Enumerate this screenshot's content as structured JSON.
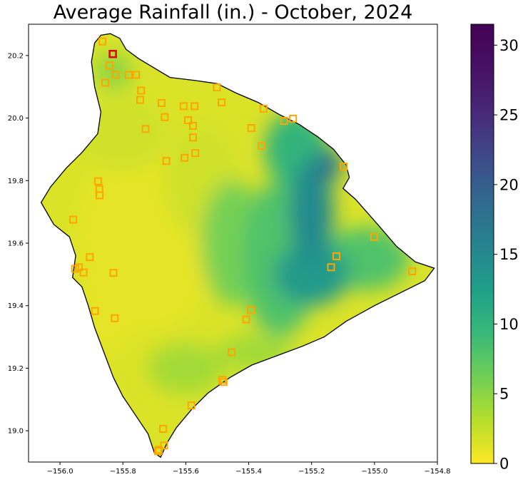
{
  "chart_data": {
    "type": "heatmap",
    "title": "Average Rainfall (in.) - October, 2024",
    "xlabel": "",
    "ylabel": "",
    "xlim": [
      -156.1,
      -154.8
    ],
    "ylim": [
      18.9,
      20.3
    ],
    "x_ticks": [
      -156.0,
      -155.8,
      -155.6,
      -155.4,
      -155.2,
      -155.0,
      -154.8
    ],
    "x_tick_labels": [
      "−156.0",
      "−155.8",
      "−155.6",
      "−155.4",
      "−155.2",
      "−155.0",
      "−154.8"
    ],
    "y_ticks": [
      19.0,
      19.2,
      19.4,
      19.6,
      19.8,
      20.0,
      20.2
    ],
    "y_tick_labels": [
      "19.0",
      "19.2",
      "19.4",
      "19.6",
      "19.8",
      "20.0",
      "20.2"
    ],
    "colorbar": {
      "colormap": "viridis_r",
      "min": 0,
      "max": 31.5,
      "ticks": [
        0,
        5,
        10,
        15,
        20,
        25,
        30
      ],
      "tick_labels": [
        "0",
        "5",
        "10",
        "15",
        "20",
        "25",
        "30"
      ]
    },
    "island_outline": [
      [
        -155.87,
        20.265
      ],
      [
        -155.84,
        20.27
      ],
      [
        -155.81,
        20.255
      ],
      [
        -155.79,
        20.22
      ],
      [
        -155.75,
        20.19
      ],
      [
        -155.7,
        20.16
      ],
      [
        -155.65,
        20.13
      ],
      [
        -155.57,
        20.12
      ],
      [
        -155.5,
        20.11
      ],
      [
        -155.44,
        20.08
      ],
      [
        -155.37,
        20.05
      ],
      [
        -155.3,
        20.01
      ],
      [
        -155.24,
        19.98
      ],
      [
        -155.18,
        19.94
      ],
      [
        -155.13,
        19.9
      ],
      [
        -155.09,
        19.85
      ],
      [
        -155.08,
        19.81
      ],
      [
        -155.1,
        19.775
      ],
      [
        -155.06,
        19.74
      ],
      [
        -154.99,
        19.66
      ],
      [
        -154.93,
        19.59
      ],
      [
        -154.87,
        19.54
      ],
      [
        -154.81,
        19.52
      ],
      [
        -154.84,
        19.48
      ],
      [
        -154.92,
        19.44
      ],
      [
        -155.0,
        19.4
      ],
      [
        -155.09,
        19.35
      ],
      [
        -155.16,
        19.3
      ],
      [
        -155.23,
        19.27
      ],
      [
        -155.31,
        19.24
      ],
      [
        -155.39,
        19.21
      ],
      [
        -155.46,
        19.17
      ],
      [
        -155.53,
        19.12
      ],
      [
        -155.58,
        19.07
      ],
      [
        -155.63,
        19.01
      ],
      [
        -155.66,
        18.96
      ],
      [
        -155.68,
        18.915
      ],
      [
        -155.7,
        18.93
      ],
      [
        -155.72,
        18.99
      ],
      [
        -155.76,
        19.05
      ],
      [
        -155.8,
        19.11
      ],
      [
        -155.83,
        19.17
      ],
      [
        -155.86,
        19.25
      ],
      [
        -155.89,
        19.33
      ],
      [
        -155.91,
        19.4
      ],
      [
        -155.93,
        19.46
      ],
      [
        -155.96,
        19.49
      ],
      [
        -155.95,
        19.56
      ],
      [
        -155.97,
        19.62
      ],
      [
        -156.02,
        19.66
      ],
      [
        -156.06,
        19.73
      ],
      [
        -156.03,
        19.78
      ],
      [
        -155.98,
        19.84
      ],
      [
        -155.93,
        19.89
      ],
      [
        -155.88,
        19.95
      ],
      [
        -155.87,
        20.02
      ],
      [
        -155.89,
        20.1
      ],
      [
        -155.9,
        20.18
      ],
      [
        -155.89,
        20.24
      ],
      [
        -155.87,
        20.265
      ]
    ],
    "rainfall_regions": [
      {
        "lon": -155.72,
        "lat": 19.62,
        "rx": 0.22,
        "ry": 0.3,
        "value": 1
      },
      {
        "lon": -155.8,
        "lat": 19.95,
        "rx": 0.14,
        "ry": 0.12,
        "value": 2
      },
      {
        "lon": -155.85,
        "lat": 19.4,
        "rx": 0.08,
        "ry": 0.15,
        "value": 1
      },
      {
        "lon": -155.55,
        "lat": 19.8,
        "rx": 0.12,
        "ry": 0.18,
        "value": 2
      },
      {
        "lon": -155.6,
        "lat": 19.2,
        "rx": 0.12,
        "ry": 0.08,
        "value": 4
      },
      {
        "lon": -155.38,
        "lat": 19.25,
        "rx": 0.12,
        "ry": 0.06,
        "value": 4
      },
      {
        "lon": -155.83,
        "lat": 20.15,
        "rx": 0.06,
        "ry": 0.06,
        "value": 5
      },
      {
        "lon": -155.45,
        "lat": 19.6,
        "rx": 0.1,
        "ry": 0.2,
        "value": 6
      },
      {
        "lon": -155.3,
        "lat": 19.55,
        "rx": 0.12,
        "ry": 0.25,
        "value": 8
      },
      {
        "lon": -155.03,
        "lat": 19.55,
        "rx": 0.14,
        "ry": 0.1,
        "value": 8
      },
      {
        "lon": -155.25,
        "lat": 19.9,
        "rx": 0.1,
        "ry": 0.12,
        "value": 10
      },
      {
        "lon": -155.2,
        "lat": 19.5,
        "rx": 0.12,
        "ry": 0.1,
        "value": 13
      },
      {
        "lon": -155.2,
        "lat": 19.7,
        "rx": 0.07,
        "ry": 0.16,
        "value": 15
      },
      {
        "lon": -155.15,
        "lat": 19.85,
        "rx": 0.05,
        "ry": 0.05,
        "value": 17
      }
    ],
    "stations": [
      {
        "lon": -155.865,
        "lat": 20.245
      },
      {
        "lon": -155.843,
        "lat": 20.168
      },
      {
        "lon": -155.823,
        "lat": 20.138
      },
      {
        "lon": -155.856,
        "lat": 20.113
      },
      {
        "lon": -155.782,
        "lat": 20.138
      },
      {
        "lon": -155.758,
        "lat": 20.138
      },
      {
        "lon": -155.742,
        "lat": 20.088
      },
      {
        "lon": -155.745,
        "lat": 20.058
      },
      {
        "lon": -155.677,
        "lat": 20.048
      },
      {
        "lon": -155.667,
        "lat": 20.003
      },
      {
        "lon": -155.728,
        "lat": 19.965
      },
      {
        "lon": -155.607,
        "lat": 20.038
      },
      {
        "lon": -155.572,
        "lat": 20.038
      },
      {
        "lon": -155.593,
        "lat": 19.993
      },
      {
        "lon": -155.577,
        "lat": 19.975
      },
      {
        "lon": -155.577,
        "lat": 19.938
      },
      {
        "lon": -155.57,
        "lat": 19.888
      },
      {
        "lon": -155.604,
        "lat": 19.873
      },
      {
        "lon": -155.662,
        "lat": 19.863
      },
      {
        "lon": -155.501,
        "lat": 20.098
      },
      {
        "lon": -155.486,
        "lat": 20.05
      },
      {
        "lon": -155.353,
        "lat": 20.03
      },
      {
        "lon": -155.392,
        "lat": 19.968
      },
      {
        "lon": -155.359,
        "lat": 19.911
      },
      {
        "lon": -155.287,
        "lat": 19.991
      },
      {
        "lon": -155.259,
        "lat": 19.998
      },
      {
        "lon": -155.098,
        "lat": 19.845
      },
      {
        "lon": -155.001,
        "lat": 19.62
      },
      {
        "lon": -155.121,
        "lat": 19.558
      },
      {
        "lon": -155.138,
        "lat": 19.523
      },
      {
        "lon": -154.88,
        "lat": 19.51
      },
      {
        "lon": -155.879,
        "lat": 19.798
      },
      {
        "lon": -155.875,
        "lat": 19.773
      },
      {
        "lon": -155.874,
        "lat": 19.753
      },
      {
        "lon": -155.958,
        "lat": 19.675
      },
      {
        "lon": -155.905,
        "lat": 19.555
      },
      {
        "lon": -155.952,
        "lat": 19.518
      },
      {
        "lon": -155.94,
        "lat": 19.523
      },
      {
        "lon": -155.925,
        "lat": 19.506
      },
      {
        "lon": -155.83,
        "lat": 19.505
      },
      {
        "lon": -155.889,
        "lat": 19.383
      },
      {
        "lon": -155.826,
        "lat": 19.36
      },
      {
        "lon": -155.393,
        "lat": 19.386
      },
      {
        "lon": -155.408,
        "lat": 19.356
      },
      {
        "lon": -155.454,
        "lat": 19.251
      },
      {
        "lon": -155.484,
        "lat": 19.163
      },
      {
        "lon": -155.48,
        "lat": 19.156
      },
      {
        "lon": -155.582,
        "lat": 19.081
      },
      {
        "lon": -155.672,
        "lat": 19.006
      },
      {
        "lon": -155.669,
        "lat": 18.953
      },
      {
        "lon": -155.686,
        "lat": 18.939
      },
      {
        "lon": -155.688,
        "lat": 18.935
      }
    ],
    "highlighted_station": {
      "lon": -155.832,
      "lat": 20.205
    }
  }
}
